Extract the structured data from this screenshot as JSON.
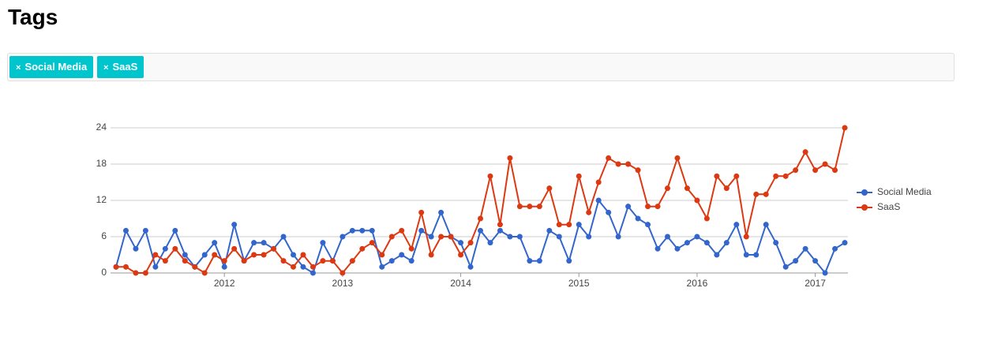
{
  "header": {
    "title": "Tags"
  },
  "filter": {
    "tags": [
      {
        "remove": "×",
        "label": "Social Media"
      },
      {
        "remove": "×",
        "label": "SaaS"
      }
    ]
  },
  "chart_data": {
    "type": "line",
    "x": [
      "2011-02",
      "2011-03",
      "2011-04",
      "2011-05",
      "2011-06",
      "2011-07",
      "2011-08",
      "2011-09",
      "2011-10",
      "2011-11",
      "2011-12",
      "2012-01",
      "2012-02",
      "2012-03",
      "2012-04",
      "2012-05",
      "2012-06",
      "2012-07",
      "2012-08",
      "2012-09",
      "2012-10",
      "2012-11",
      "2012-12",
      "2013-01",
      "2013-02",
      "2013-03",
      "2013-04",
      "2013-05",
      "2013-06",
      "2013-07",
      "2013-08",
      "2013-09",
      "2013-10",
      "2013-11",
      "2013-12",
      "2014-01",
      "2014-02",
      "2014-03",
      "2014-04",
      "2014-05",
      "2014-06",
      "2014-07",
      "2014-08",
      "2014-09",
      "2014-10",
      "2014-11",
      "2014-12",
      "2015-01",
      "2015-02",
      "2015-03",
      "2015-04",
      "2015-05",
      "2015-06",
      "2015-07",
      "2015-08",
      "2015-09",
      "2015-10",
      "2015-11",
      "2015-12",
      "2016-01",
      "2016-02",
      "2016-03",
      "2016-04",
      "2016-05",
      "2016-06",
      "2016-07",
      "2016-08",
      "2016-09",
      "2016-10",
      "2016-11",
      "2016-12",
      "2017-01",
      "2017-02",
      "2017-03",
      "2017-04"
    ],
    "series": [
      {
        "name": "Social Media",
        "color": "#3366cc",
        "values": [
          1,
          7,
          4,
          7,
          1,
          4,
          7,
          3,
          1,
          3,
          5,
          1,
          8,
          2,
          5,
          5,
          4,
          6,
          3,
          1,
          0,
          5,
          2,
          6,
          7,
          7,
          7,
          1,
          2,
          3,
          2,
          7,
          6,
          10,
          6,
          5,
          1,
          7,
          5,
          7,
          6,
          6,
          2,
          2,
          7,
          6,
          2,
          8,
          6,
          12,
          10,
          6,
          11,
          9,
          8,
          4,
          6,
          4,
          5,
          6,
          5,
          3,
          5,
          8,
          3,
          3,
          8,
          5,
          1,
          2,
          4,
          2,
          0,
          4,
          5
        ]
      },
      {
        "name": "SaaS",
        "color": "#dc3912",
        "values": [
          1,
          1,
          0,
          0,
          3,
          2,
          4,
          2,
          1,
          0,
          3,
          2,
          4,
          2,
          3,
          3,
          4,
          2,
          1,
          3,
          1,
          2,
          2,
          0,
          2,
          4,
          5,
          3,
          6,
          7,
          4,
          10,
          3,
          6,
          6,
          3,
          5,
          9,
          16,
          8,
          19,
          11,
          11,
          11,
          14,
          8,
          8,
          16,
          10,
          15,
          19,
          18,
          18,
          17,
          11,
          11,
          14,
          19,
          14,
          12,
          9,
          16,
          14,
          16,
          6,
          13,
          13,
          16,
          16,
          17,
          20,
          17,
          18,
          17,
          24
        ]
      }
    ],
    "xlim": [
      "2011-02",
      "2017-04"
    ],
    "xticks": [
      2012,
      2013,
      2014,
      2015,
      2016,
      2017
    ],
    "ylim": [
      0,
      24
    ],
    "yticks": [
      0,
      6,
      12,
      18,
      24
    ],
    "grid": true,
    "legend": "right"
  }
}
